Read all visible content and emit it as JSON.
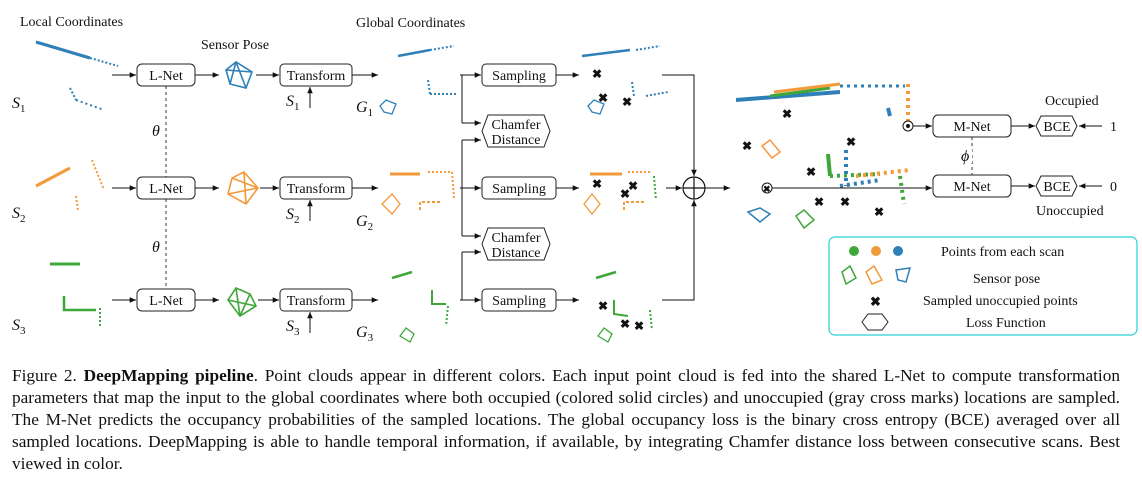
{
  "figure": {
    "headings": {
      "local": "Local Coordinates",
      "sensor_pose": "Sensor Pose",
      "global": "Global Coordinates"
    },
    "scans": [
      {
        "label": "S",
        "sub": "1",
        "global_label": "G",
        "global_sub": "1"
      },
      {
        "label": "S",
        "sub": "2",
        "global_label": "G",
        "global_sub": "2"
      },
      {
        "label": "S",
        "sub": "3",
        "global_label": "G",
        "global_sub": "3"
      }
    ],
    "boxes": {
      "lnet": "L-Net",
      "transform": "Transform",
      "sampling": "Sampling",
      "chamfer_1": "Chamfer",
      "chamfer_2": "Distance",
      "mnet": "M-Net",
      "bce": "BCE"
    },
    "theta": "θ",
    "phi": "ϕ",
    "occupied": "Occupied",
    "unoccupied": "Unoccupied",
    "target_occupied": "1",
    "target_unoccupied": "0",
    "legend": [
      "Points from each scan",
      "Sensor pose",
      "Sampled unoccupied points",
      "Loss Function"
    ],
    "colors": {
      "blue": "#2f7fb8",
      "orange": "#f39a3a",
      "green": "#3fa63a",
      "legend_border": "#2ad0d6"
    }
  },
  "caption": {
    "label": "Figure 2.",
    "title": "DeepMapping pipeline",
    "text": ". Point clouds appear in different colors. Each input point cloud is fed into the shared L-Net to compute transformation parameters that map the input to the global coordinates where both occupied (colored solid circles) and unoccupied (gray cross marks) locations are sampled. The M-Net predicts the occupancy probabilities of the sampled locations. The global occupancy loss is the binary cross entropy (BCE) averaged over all sampled locations. DeepMapping is able to handle temporal information, if available, by integrating Chamfer distance loss between consecutive scans. Best viewed in color."
  }
}
